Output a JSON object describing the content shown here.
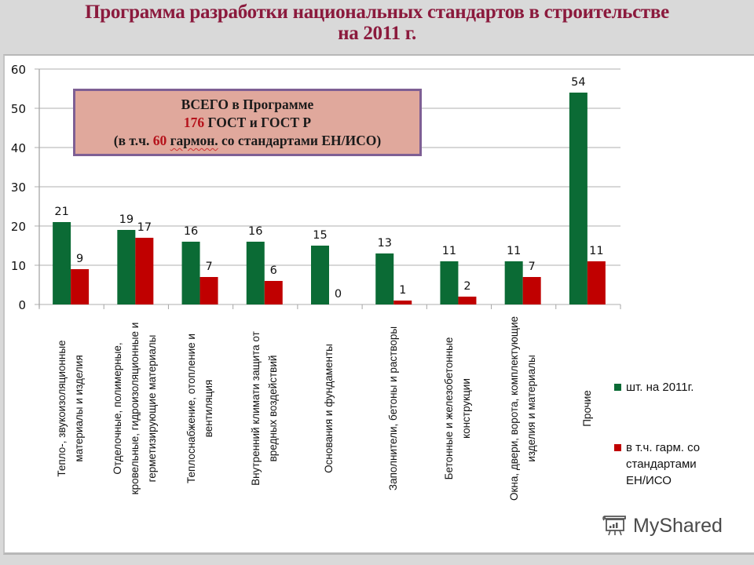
{
  "title": {
    "line1": "Программа разработки национальных стандартов в строительстве",
    "line2": "на 2011  г."
  },
  "callout": {
    "line1": "ВСЕГО в Программе",
    "line2_number": "176",
    "line2_text": " ГОСТ и ГОСТ Р",
    "line3_prefix": "(в т.ч. ",
    "line3_number": "60",
    "line3_wavy": "гармон.",
    "line3_suffix": " со стандартами  ЕН/ИСО)"
  },
  "legend": {
    "items": [
      {
        "label": "шт. на 2011г.",
        "color": "#0b6b35"
      },
      {
        "label": "в т.ч. гарм. со\nстандартами\nЕН/ИСО",
        "color": "#c00000"
      }
    ]
  },
  "watermark": {
    "text": "MyShared"
  },
  "colors": {
    "series1": "#0b6b35",
    "series2": "#c00000",
    "grid": "#bfbfbf",
    "title": "#8b1a3d",
    "callout_bg": "#e0a89c",
    "callout_border": "#7e5f94"
  },
  "chart_data": {
    "type": "bar",
    "title": "Программа разработки национальных стандартов в строительстве на 2011 г.",
    "xlabel": "",
    "ylabel": "",
    "ylim": [
      0,
      60
    ],
    "yticks": [
      0,
      10,
      20,
      30,
      40,
      50,
      60
    ],
    "grid": true,
    "legend_position": "right",
    "categories": [
      "Тепло-, звукоизоляционные материалы и изделия",
      "Отделочные, полимерные, кровельные, гидроизоляционные и герметизирующие материалы",
      "Теплоснабжение, отопление и вентиляция",
      "Внутренний климат и защита от вредных воздействий",
      "Основания и фундаменты",
      "Заполнители, бетоны и растворы",
      "Бетонные и железобетонные конструкции",
      "Окна, двери, ворота, комплектующие изделия и материалы",
      "Прочие"
    ],
    "category_label_lines": [
      [
        "Тепло-, звукоизоляционные",
        "материалы и изделия"
      ],
      [
        "Отделочные, полимерные,",
        "кровельные, гидроизоляционные и",
        "герметизирующие материалы"
      ],
      [
        "Теплоснабжение, отопление и",
        "вентиляция"
      ],
      [
        "Внутренний климати  защита от",
        "вредных воздействий"
      ],
      [
        "Основания и фундаменты"
      ],
      [
        "Заполнители, бетоны и растворы"
      ],
      [
        "Бетонные и железобетонные",
        "конструкции"
      ],
      [
        "Окна, двери, ворота, комплектующие",
        "изделия и материалы"
      ],
      [
        "Прочие"
      ]
    ],
    "series": [
      {
        "name": "шт. на 2011г.",
        "values": [
          21,
          19,
          16,
          16,
          15,
          13,
          11,
          11,
          54
        ]
      },
      {
        "name": "в т.ч. гарм. со стандартами ЕН/ИСО",
        "values": [
          9,
          17,
          7,
          6,
          0,
          1,
          2,
          7,
          11
        ]
      }
    ],
    "annotations": [
      "ВСЕГО в Программе 176 ГОСТ и ГОСТ Р (в т.ч. 60 гармон. со стандартами ЕН/ИСО)"
    ]
  }
}
